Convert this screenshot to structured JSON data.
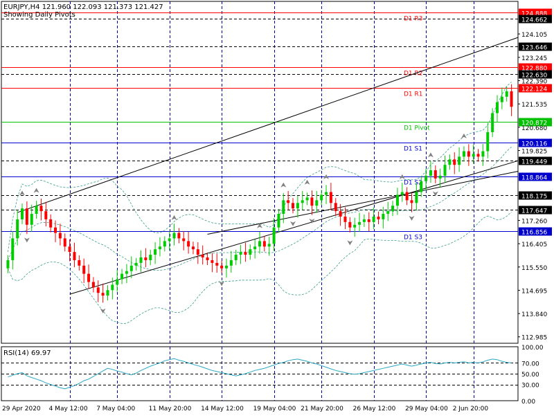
{
  "header": {
    "symbol_line": "EURJPY,H4  121.960 122.093 121.373 121.427",
    "subtitle": "Showing Daily Pivots"
  },
  "pivots": [
    {
      "label": "D1 R3",
      "value": 124.888,
      "badge": "124.888",
      "color": "#ff0000"
    },
    {
      "label": "D1 R2",
      "value": 122.88,
      "badge": "122.880",
      "color": "#ff0000"
    },
    {
      "label": "D1 R1",
      "value": 122.124,
      "badge": "122.124",
      "color": "#ff0000"
    },
    {
      "label": "D1 Pivot",
      "value": 120.872,
      "badge": "120.872",
      "color": "#00c000"
    },
    {
      "label": "D1 S1",
      "value": 120.116,
      "badge": "120.116",
      "color": "#0000cc"
    },
    {
      "label": "D1 S2",
      "value": 118.864,
      "badge": "118.864",
      "color": "#0000cc"
    },
    {
      "label": "D1 S3",
      "value": 116.856,
      "badge": "116.856",
      "color": "#0000cc"
    }
  ],
  "level_badges": [
    {
      "value": 124.662,
      "text": "124.662"
    },
    {
      "value": 123.646,
      "text": "123.646"
    },
    {
      "value": 122.63,
      "text": "122.630"
    },
    {
      "value": 119.449,
      "text": "119.449"
    },
    {
      "value": 118.175,
      "text": "118.175"
    },
    {
      "value": 117.647,
      "text": "117.647"
    }
  ],
  "chart_data": [
    {
      "type": "candlestick",
      "title": "EURJPY,H4",
      "ylim": [
        112.75,
        125.3
      ],
      "y_ticks": [
        {
          "value": 124.105,
          "label": "124.105"
        },
        {
          "value": 123.245,
          "label": "123.245"
        },
        {
          "value": 122.39,
          "label": "122.390"
        },
        {
          "value": 121.535,
          "label": "121.535"
        },
        {
          "value": 120.68,
          "label": "120.680"
        },
        {
          "value": 119.825,
          "label": "119.825"
        },
        {
          "value": 117.26,
          "label": "117.260"
        },
        {
          "value": 116.405,
          "label": "116.405"
        },
        {
          "value": 115.55,
          "label": "115.550"
        },
        {
          "value": 114.695,
          "label": "114.695"
        },
        {
          "value": 113.84,
          "label": "113.840"
        },
        {
          "value": 112.985,
          "label": "112.985"
        }
      ],
      "x_labels": [
        "29 Apr 2020",
        "4 May 12:00",
        "7 May 04:00",
        "11 May 20:00",
        "14 May 12:00",
        "19 May 04:00",
        "21 May 20:00",
        "26 May 12:00",
        "29 May 04:00",
        "2 Jun 20:00"
      ],
      "grid": true,
      "close": [
        115.8,
        116.6,
        117.3,
        117.7,
        117.1,
        117.5,
        117.8,
        117.6,
        117.3,
        117.0,
        116.8,
        116.6,
        116.3,
        116.1,
        115.8,
        115.6,
        115.3,
        115.0,
        114.8,
        114.6,
        114.5,
        114.7,
        114.9,
        115.1,
        115.3,
        115.4,
        115.6,
        115.7,
        115.9,
        115.8,
        116.0,
        116.2,
        116.3,
        116.5,
        116.6,
        116.8,
        116.6,
        116.5,
        116.3,
        116.2,
        116.0,
        115.9,
        115.8,
        115.7,
        115.6,
        115.5,
        115.6,
        115.8,
        116.0,
        116.1,
        116.0,
        116.2,
        116.3,
        116.5,
        116.3,
        116.4,
        117.0,
        117.5,
        118.0,
        117.9,
        117.7,
        117.9,
        118.0,
        118.1,
        117.8,
        118.0,
        118.2,
        118.3,
        117.9,
        117.6,
        117.4,
        117.2,
        117.0,
        117.1,
        117.2,
        117.3,
        117.2,
        117.4,
        117.3,
        117.5,
        117.6,
        117.8,
        118.2,
        118.3,
        118.0,
        117.9,
        118.3,
        118.7,
        118.9,
        119.1,
        118.8,
        118.9,
        119.3,
        119.5,
        119.3,
        119.6,
        119.8,
        119.6,
        119.7,
        119.6,
        119.8,
        120.5,
        121.2,
        121.6,
        121.8,
        122.0,
        121.43
      ],
      "bollinger": {
        "period": 20,
        "deviations": 2
      },
      "channels": [
        {
          "from": 0.02,
          "to": 1.0,
          "start": 117.55,
          "slope_per_bar": 0.0595
        },
        {
          "from": 0.12,
          "to": 1.0,
          "start": 114.55,
          "slope_per_bar": 0.0505
        },
        {
          "from": 0.4,
          "to": 1.0,
          "start": 116.75,
          "slope_per_bar": 0.034
        }
      ]
    },
    {
      "type": "line",
      "title": "RSI(14) 69.97",
      "ylim": [
        0,
        100
      ],
      "y_ticks": [
        {
          "value": 100,
          "label": "100.00"
        },
        {
          "value": 70,
          "label": "70.00"
        },
        {
          "value": 50,
          "label": "50.00"
        },
        {
          "value": 30,
          "label": "30.00"
        },
        {
          "value": 0,
          "label": "0.00"
        }
      ],
      "levels": [
        70,
        50,
        30
      ],
      "values": [
        44,
        47,
        50,
        52,
        46,
        43,
        40,
        37,
        33,
        30,
        27,
        24,
        22,
        25,
        28,
        32,
        37,
        40,
        45,
        50,
        55,
        60,
        58,
        55,
        53,
        50,
        48,
        51,
        56,
        60,
        64,
        67,
        70,
        74,
        76,
        78,
        75,
        73,
        70,
        67,
        65,
        62,
        59,
        56,
        54,
        52,
        50,
        48,
        46,
        48,
        50,
        53,
        56,
        58,
        60,
        63,
        66,
        69,
        71,
        74,
        76,
        77,
        75,
        73,
        70,
        68,
        65,
        62,
        59,
        56,
        54,
        52,
        50,
        49,
        50,
        52,
        54,
        56,
        58,
        60,
        62,
        64,
        66,
        68,
        66,
        64,
        66,
        68,
        70,
        71,
        69,
        68,
        70,
        71,
        70,
        71,
        72,
        70,
        71,
        70,
        72,
        75,
        77,
        76,
        73,
        71,
        69.97
      ]
    }
  ]
}
